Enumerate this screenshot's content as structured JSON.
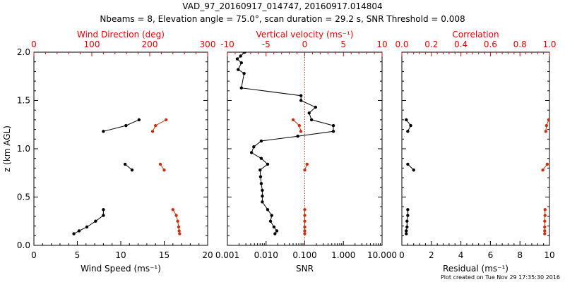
{
  "title": "VAD_97_20160917_014747, 20160917.014804",
  "subtitle": "Nbeams = 8, Elevation angle = 75.0°, scan duration = 29.2 s, SNR Threshold = 0.008",
  "footer": "Plot created on Tue Nov 29 17:35:30 2016",
  "colors": {
    "black": "#000000",
    "red": "#c83214",
    "axis_red": "#e60000"
  },
  "chart_data": [
    {
      "type": "scatter",
      "panel": "wind",
      "xlabel": "Wind Speed (ms⁻¹)",
      "ylabel": "z (km AGL)",
      "xlim": [
        0,
        20
      ],
      "ylim": [
        0,
        2.0
      ],
      "x_ticks": [
        "0",
        "5",
        "10",
        "15",
        "20"
      ],
      "y_ticks": [
        "0.0",
        "0.5",
        "1.0",
        "1.5",
        "2.0"
      ],
      "top_axis": {
        "label": "Wind Direction (deg)",
        "xlim": [
          0,
          360
        ],
        "ticks": [
          "0",
          "100",
          "200",
          "300"
        ]
      },
      "series": [
        {
          "axis": "bottom",
          "color": "black",
          "segments": [
            [
              [
                4.6,
                0.12
              ],
              [
                5.2,
                0.15
              ],
              [
                6.1,
                0.19
              ],
              [
                7.1,
                0.25
              ],
              [
                8.0,
                0.31
              ],
              [
                8.0,
                0.37
              ]
            ],
            [
              [
                10.5,
                0.84
              ],
              [
                11.3,
                0.78
              ]
            ],
            [
              [
                8.0,
                1.18
              ],
              [
                10.6,
                1.24
              ],
              [
                12.1,
                1.3
              ]
            ]
          ]
        },
        {
          "axis": "top",
          "color": "red",
          "segments": [
            [
              [
                302,
                0.12
              ],
              [
                301,
                0.15
              ],
              [
                300,
                0.19
              ],
              [
                298,
                0.25
              ],
              [
                295,
                0.31
              ],
              [
                288,
                0.37
              ]
            ],
            [
              [
                262,
                0.84
              ],
              [
                270,
                0.78
              ]
            ],
            [
              [
                246,
                1.18
              ],
              [
                252,
                1.24
              ],
              [
                274,
                1.3
              ]
            ]
          ]
        }
      ]
    },
    {
      "type": "scatter",
      "panel": "snr",
      "xlabel": "SNR",
      "xscale": "log",
      "xlim": [
        0.001,
        10.0
      ],
      "ylim": [
        0,
        2.0
      ],
      "x_ticks": [
        "0.001",
        "0.010",
        "0.100",
        "1.000",
        "10.000"
      ],
      "top_axis": {
        "label": "Vertical velocity (ms⁻¹)",
        "xlim": [
          -10,
          10
        ],
        "ticks": [
          "-10",
          "-5",
          "0",
          "5",
          "10"
        ]
      },
      "series": [
        {
          "axis": "bottom",
          "color": "black",
          "segments": [
            [
              [
                0.017,
                0.12
              ],
              [
                0.019,
                0.15
              ],
              [
                0.016,
                0.19
              ],
              [
                0.013,
                0.25
              ],
              [
                0.014,
                0.31
              ],
              [
                0.011,
                0.37
              ],
              [
                0.008,
                0.45
              ],
              [
                0.008,
                0.51
              ],
              [
                0.008,
                0.57
              ],
              [
                0.0075,
                0.64
              ],
              [
                0.0072,
                0.71
              ],
              [
                0.007,
                0.78
              ],
              [
                0.011,
                0.84
              ],
              [
                0.0075,
                0.9
              ],
              [
                0.0042,
                0.96
              ],
              [
                0.0048,
                1.02
              ],
              [
                0.0075,
                1.08
              ],
              [
                0.066,
                1.13
              ],
              [
                0.55,
                1.18
              ],
              [
                0.55,
                1.24
              ],
              [
                0.15,
                1.3
              ],
              [
                0.13,
                1.37
              ],
              [
                0.19,
                1.43
              ],
              [
                0.08,
                1.5
              ],
              [
                0.08,
                1.55
              ],
              [
                0.0023,
                1.63
              ],
              [
                0.0027,
                1.78
              ],
              [
                0.0019,
                1.82
              ],
              [
                0.0023,
                1.89
              ],
              [
                0.0018,
                1.93
              ],
              [
                0.0022,
                1.96
              ],
              [
                0.0028,
                2.0
              ]
            ]
          ]
        },
        {
          "axis": "top",
          "color": "red",
          "segments": [
            [
              [
                0.0,
                0.12
              ],
              [
                0.0,
                0.15
              ],
              [
                0.0,
                0.19
              ],
              [
                0.0,
                0.25
              ],
              [
                0.0,
                0.31
              ],
              [
                0.0,
                0.37
              ]
            ],
            [
              [
                0.3,
                0.84
              ],
              [
                0.0,
                0.78
              ]
            ],
            [
              [
                -0.5,
                1.18
              ],
              [
                -0.7,
                1.24
              ],
              [
                -1.5,
                1.3
              ]
            ]
          ]
        }
      ],
      "reference_line": {
        "axis": "top",
        "x": 0,
        "color": "red",
        "style": "dotted"
      }
    },
    {
      "type": "scatter",
      "panel": "residual",
      "xlabel": "Residual (ms⁻¹)",
      "xlim": [
        0,
        10
      ],
      "ylim": [
        0,
        2.0
      ],
      "x_ticks": [
        "0",
        "2",
        "4",
        "6",
        "8",
        "10"
      ],
      "top_axis": {
        "label": "Correlation",
        "xlim": [
          0.0,
          1.0
        ],
        "ticks": [
          "0.0",
          "0.2",
          "0.4",
          "0.6",
          "0.8",
          "1.0"
        ]
      },
      "series": [
        {
          "axis": "bottom",
          "color": "black",
          "segments": [
            [
              [
                0.3,
                0.12
              ],
              [
                0.3,
                0.15
              ],
              [
                0.35,
                0.19
              ],
              [
                0.35,
                0.25
              ],
              [
                0.4,
                0.31
              ],
              [
                0.4,
                0.37
              ]
            ],
            [
              [
                0.4,
                0.84
              ],
              [
                0.8,
                0.78
              ]
            ],
            [
              [
                0.4,
                1.18
              ],
              [
                0.6,
                1.24
              ],
              [
                0.3,
                1.3
              ]
            ]
          ]
        },
        {
          "axis": "top",
          "color": "red",
          "segments": [
            [
              [
                0.968,
                0.12
              ],
              [
                0.968,
                0.15
              ],
              [
                0.968,
                0.19
              ],
              [
                0.968,
                0.25
              ],
              [
                0.97,
                0.31
              ],
              [
                0.97,
                0.37
              ]
            ],
            [
              [
                0.985,
                0.84
              ],
              [
                0.955,
                0.78
              ]
            ],
            [
              [
                0.975,
                1.18
              ],
              [
                0.98,
                1.24
              ],
              [
                0.995,
                1.3
              ]
            ]
          ]
        }
      ]
    }
  ]
}
